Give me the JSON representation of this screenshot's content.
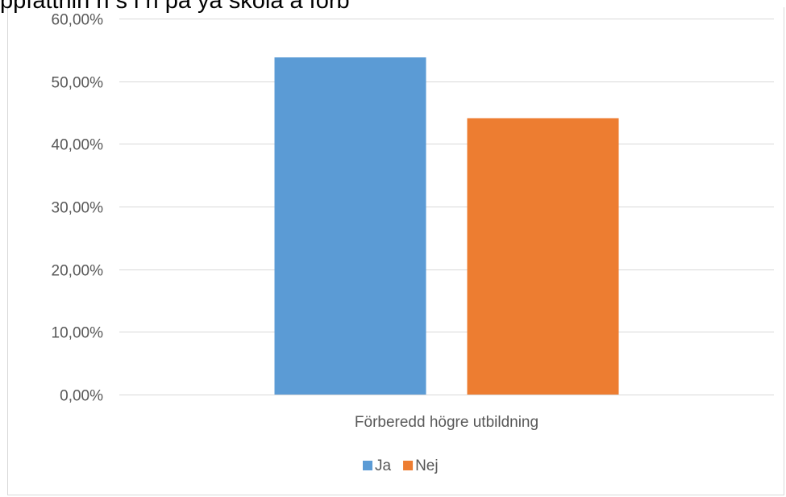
{
  "overflow_text": "ppfattnin     n    s    l   n    pa    ya    skola    a    förb",
  "chart_data": {
    "type": "bar",
    "categories": [
      "Förberedd högre utbildning"
    ],
    "series": [
      {
        "name": "Ja",
        "values": [
          53.8
        ],
        "color": "#5b9bd5"
      },
      {
        "name": "Nej",
        "values": [
          44.1
        ],
        "color": "#ed7d31"
      }
    ],
    "ylim": [
      0,
      60
    ],
    "yticks": [
      "0,00%",
      "10,00%",
      "20,00%",
      "30,00%",
      "40,00%",
      "50,00%",
      "60,00%"
    ],
    "ytick_values": [
      0,
      10,
      20,
      30,
      40,
      50,
      60
    ],
    "grid": true,
    "gridline_color": "#d9d9d9",
    "legend_position": "bottom"
  }
}
